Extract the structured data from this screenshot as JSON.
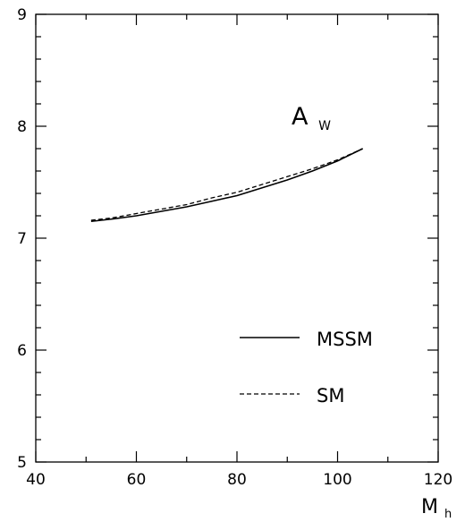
{
  "chart_data": {
    "type": "line",
    "title": "",
    "xlabel": "M",
    "xlabel_sub": "h",
    "ylabel": "",
    "annotation": {
      "main": "A",
      "sub": "W"
    },
    "xlim": [
      40,
      120
    ],
    "ylim": [
      5,
      9
    ],
    "x_ticks": [
      40,
      60,
      80,
      100,
      120
    ],
    "y_ticks": [
      5,
      6,
      7,
      8,
      9
    ],
    "x_tick_labels": [
      "40",
      "60",
      "80",
      "100",
      "120"
    ],
    "y_tick_labels": [
      "5",
      "6",
      "7",
      "8",
      "9"
    ],
    "grid": false,
    "legend_position": "lower-right",
    "series": [
      {
        "name": "MSSM",
        "style": "solid",
        "x": [
          51,
          55,
          60,
          65,
          70,
          75,
          80,
          85,
          90,
          95,
          100,
          105
        ],
        "y": [
          7.15,
          7.17,
          7.2,
          7.24,
          7.28,
          7.33,
          7.38,
          7.45,
          7.52,
          7.6,
          7.69,
          7.8
        ]
      },
      {
        "name": "SM",
        "style": "dashed",
        "x": [
          51,
          55,
          60,
          65,
          70,
          75,
          80,
          85,
          90,
          95,
          100,
          105
        ],
        "y": [
          7.16,
          7.18,
          7.22,
          7.26,
          7.3,
          7.36,
          7.41,
          7.48,
          7.55,
          7.62,
          7.7,
          7.8
        ]
      }
    ]
  }
}
